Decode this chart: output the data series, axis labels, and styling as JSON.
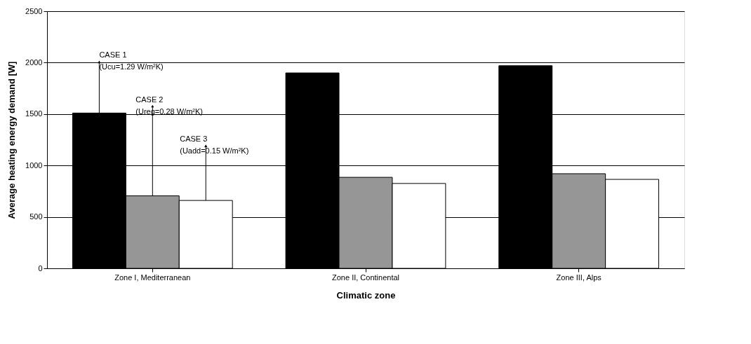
{
  "chart_data": {
    "type": "bar",
    "xlabel": "Climatic zone",
    "ylabel": "Average heating energy demand [W]",
    "categories": [
      "Zone I, Mediterranean",
      "Zone II, Continental",
      "Zone III, Alps"
    ],
    "series": [
      {
        "color": "#000000",
        "values": [
          1510,
          1900,
          1970
        ]
      },
      {
        "color": "#969696",
        "values": [
          705,
          885,
          920
        ]
      },
      {
        "color": "#ffffff",
        "values": [
          660,
          825,
          865
        ]
      }
    ],
    "ylim": [
      0,
      2500
    ],
    "yticks": [
      0,
      500,
      1000,
      1500,
      2000,
      2500
    ],
    "grid": "y",
    "legend": false,
    "annotations": [
      "CASE 1\n(Ucu=1.29 W/m²K)",
      "CASE 2\n(Ureg=0.28 W/m²K)",
      "CASE 3\n(Uadd=0.15 W/m²K)"
    ]
  }
}
